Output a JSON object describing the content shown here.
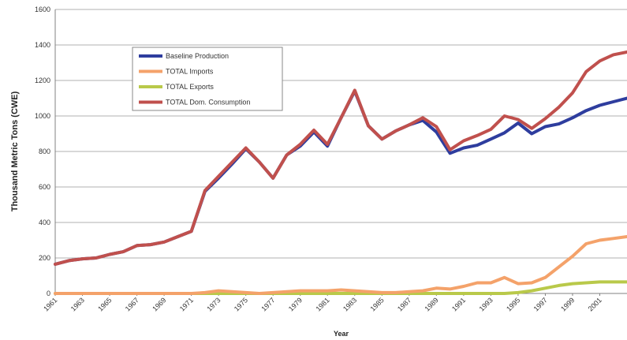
{
  "chart_data": {
    "type": "line",
    "title": "",
    "xlabel": "Year",
    "ylabel": "Thousand Metric Tons (CWE)",
    "xlim": [
      1961,
      2003
    ],
    "ylim": [
      0,
      1600
    ],
    "grid": true,
    "legend_position": "top-left",
    "x_tick_labels": [
      "1961",
      "1963",
      "1965",
      "1967",
      "1969",
      "1971",
      "1973",
      "1975",
      "1977",
      "1979",
      "1981",
      "1983",
      "1985",
      "1987",
      "1989",
      "1991",
      "1993",
      "1995",
      "1997",
      "1999",
      "2001"
    ],
    "y_tick_labels": [
      "0",
      "200",
      "400",
      "600",
      "800",
      "1000",
      "1200",
      "1400",
      "1600"
    ],
    "x": [
      1961,
      1962,
      1963,
      1964,
      1965,
      1966,
      1967,
      1968,
      1969,
      1970,
      1971,
      1972,
      1973,
      1974,
      1975,
      1976,
      1977,
      1978,
      1979,
      1980,
      1981,
      1982,
      1983,
      1984,
      1985,
      1986,
      1987,
      1988,
      1989,
      1990,
      1991,
      1992,
      1993,
      1994,
      1995,
      1996,
      1997,
      1998,
      1999,
      2000,
      2001,
      2002,
      2003
    ],
    "series": [
      {
        "name": "Baseline Production",
        "color": "#2e3d9e",
        "values": [
          165,
          185,
          195,
          200,
          220,
          235,
          270,
          275,
          290,
          320,
          350,
          575,
          650,
          730,
          815,
          740,
          650,
          780,
          830,
          910,
          830,
          990,
          1140,
          945,
          870,
          915,
          950,
          975,
          910,
          790,
          820,
          835,
          870,
          905,
          960,
          900,
          940,
          955,
          990,
          1030,
          1060,
          1080,
          1100
        ]
      },
      {
        "name": "TOTAL Imports",
        "color": "#f4a26a",
        "values": [
          0,
          0,
          0,
          0,
          0,
          0,
          0,
          0,
          0,
          0,
          0,
          5,
          15,
          10,
          5,
          0,
          5,
          10,
          15,
          15,
          15,
          20,
          15,
          10,
          5,
          5,
          10,
          15,
          30,
          25,
          40,
          60,
          60,
          90,
          55,
          60,
          90,
          150,
          210,
          280,
          300,
          310,
          320
        ]
      },
      {
        "name": "TOTAL Exports",
        "color": "#b9c94a",
        "values": [
          0,
          0,
          0,
          0,
          0,
          0,
          0,
          0,
          0,
          0,
          0,
          0,
          0,
          0,
          0,
          0,
          0,
          0,
          0,
          0,
          0,
          0,
          0,
          0,
          0,
          0,
          0,
          0,
          0,
          0,
          0,
          0,
          0,
          0,
          5,
          15,
          30,
          45,
          55,
          60,
          65,
          65,
          65
        ]
      },
      {
        "name": "TOTAL Dom. Consumption",
        "color": "#c0504d",
        "values": [
          165,
          185,
          195,
          200,
          220,
          235,
          270,
          275,
          290,
          320,
          350,
          580,
          660,
          740,
          820,
          740,
          650,
          780,
          840,
          920,
          840,
          990,
          1145,
          945,
          870,
          915,
          950,
          990,
          940,
          810,
          860,
          890,
          925,
          1000,
          980,
          930,
          985,
          1050,
          1130,
          1250,
          1310,
          1345,
          1360
        ]
      }
    ]
  }
}
